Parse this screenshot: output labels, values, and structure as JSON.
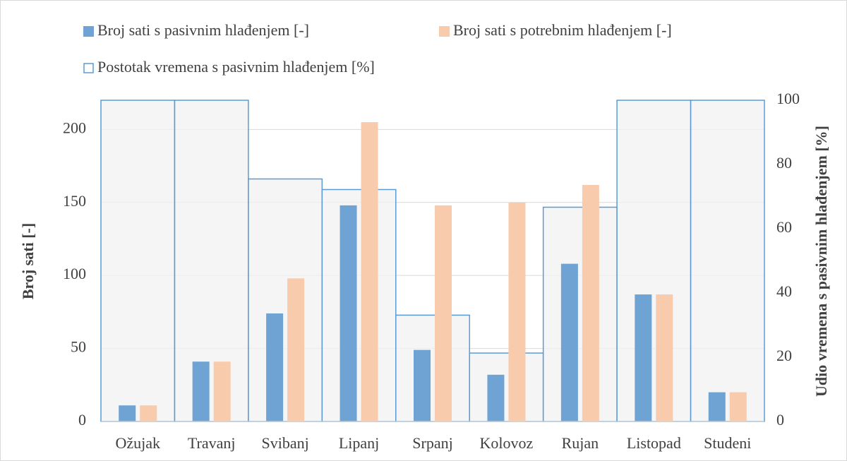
{
  "chart_data": {
    "type": "bar",
    "categories": [
      "Ožujak",
      "Travanj",
      "Svibanj",
      "Lipanj",
      "Srpanj",
      "Kolovoz",
      "Rujan",
      "Listopad",
      "Studeni"
    ],
    "series": [
      {
        "name": "Broj sati s pasivnim hlađenjem [-]",
        "color": "#6fa3d4",
        "values": [
          11,
          41,
          74,
          148,
          49,
          32,
          108,
          87,
          20
        ]
      },
      {
        "name": "Broj sati s potrebnim hlađenjem [-]",
        "color": "#f8cbad",
        "values": [
          11,
          41,
          98,
          205,
          148,
          150,
          162,
          87,
          20
        ]
      },
      {
        "name": "Postotak vremena s pasivnim hlađenjem [%]",
        "color": "#5b9bd5",
        "fill": "#f2f2f2",
        "axis": "y2",
        "values": [
          100,
          100,
          75.5,
          72.2,
          33.1,
          21.3,
          66.7,
          100,
          100
        ]
      }
    ],
    "ylabel": "Broj sati [-]",
    "y2label": "Udio vremena s pasivnim hlađenjem [%]",
    "ylim": [
      0,
      220
    ],
    "yticks": [
      0,
      50,
      100,
      150,
      200
    ],
    "y2lim": [
      0,
      100
    ],
    "y2ticks": [
      0,
      20,
      40,
      60,
      80,
      100
    ],
    "grid": true,
    "legend": "top"
  }
}
